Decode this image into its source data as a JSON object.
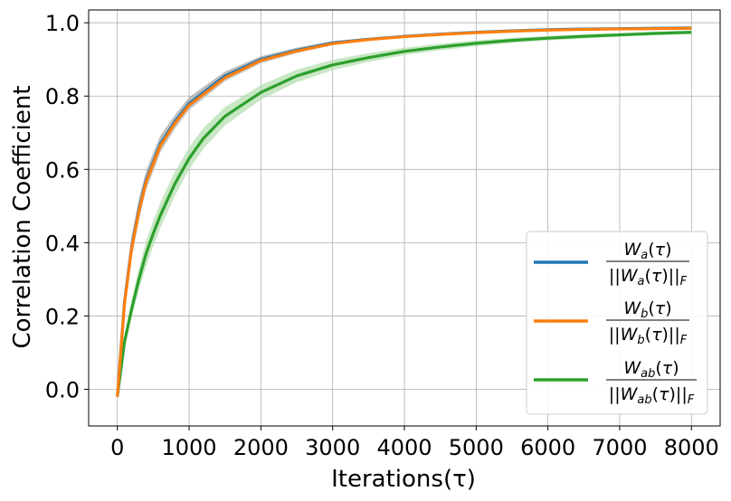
{
  "chart_data": {
    "type": "line",
    "title": "",
    "xlabel": "Iterations(τ)",
    "ylabel": "Correlation Coefficient",
    "xlim": [
      -400,
      8400
    ],
    "ylim": [
      -0.1,
      1.035
    ],
    "xticks": [
      0,
      1000,
      2000,
      3000,
      4000,
      5000,
      6000,
      7000,
      8000
    ],
    "yticks": [
      0.0,
      0.2,
      0.4,
      0.6,
      0.8,
      1.0
    ],
    "xtick_labels": [
      "0",
      "1000",
      "2000",
      "3000",
      "4000",
      "5000",
      "6000",
      "7000",
      "8000"
    ],
    "ytick_labels": [
      "0.0",
      "0.2",
      "0.4",
      "0.6",
      "0.8",
      "1.0"
    ],
    "grid": true,
    "legend_position": "bottom-right",
    "x": [
      0,
      100,
      200,
      300,
      400,
      500,
      600,
      800,
      1000,
      1200,
      1500,
      2000,
      2500,
      3000,
      3500,
      4000,
      4500,
      5000,
      5500,
      6000,
      6500,
      7000,
      7500,
      8000
    ],
    "series": [
      {
        "name": "Wa(τ) / ||Wa(τ)||F",
        "color": "#1f77b4",
        "band_color": "#a6a6a6",
        "values": [
          -0.02,
          0.24,
          0.39,
          0.49,
          0.57,
          0.62,
          0.67,
          0.73,
          0.78,
          0.81,
          0.855,
          0.9,
          0.925,
          0.945,
          0.955,
          0.963,
          0.969,
          0.974,
          0.978,
          0.981,
          0.983,
          0.984,
          0.985,
          0.986
        ],
        "band": [
          0.02,
          0.03,
          0.03,
          0.03,
          0.025,
          0.025,
          0.022,
          0.018,
          0.017,
          0.015,
          0.012,
          0.009,
          0.007,
          0.005,
          0.004,
          0.003,
          0.003,
          0.002,
          0.002,
          0.002,
          0.002,
          0.002,
          0.002,
          0.002
        ]
      },
      {
        "name": "Wb(τ) / ||Wb(τ)||F",
        "color": "#ff7f0e",
        "band_color": "#c7c7c7",
        "values": [
          -0.02,
          0.235,
          0.385,
          0.485,
          0.565,
          0.615,
          0.665,
          0.725,
          0.775,
          0.805,
          0.85,
          0.897,
          0.923,
          0.943,
          0.954,
          0.962,
          0.968,
          0.973,
          0.977,
          0.98,
          0.982,
          0.983,
          0.984,
          0.985
        ],
        "band": [
          0.015,
          0.025,
          0.025,
          0.025,
          0.02,
          0.02,
          0.018,
          0.015,
          0.013,
          0.012,
          0.01,
          0.008,
          0.006,
          0.004,
          0.003,
          0.003,
          0.002,
          0.002,
          0.002,
          0.002,
          0.002,
          0.002,
          0.002,
          0.002
        ]
      },
      {
        "name": "Wab(τ) / ||Wab(τ)||F",
        "color": "#2ca02c",
        "band_color": "#b5dfb0",
        "values": [
          -0.02,
          0.13,
          0.22,
          0.3,
          0.37,
          0.425,
          0.475,
          0.56,
          0.63,
          0.685,
          0.745,
          0.81,
          0.855,
          0.885,
          0.905,
          0.922,
          0.934,
          0.944,
          0.952,
          0.958,
          0.963,
          0.967,
          0.971,
          0.974
        ],
        "band": [
          0.01,
          0.02,
          0.025,
          0.03,
          0.035,
          0.035,
          0.035,
          0.033,
          0.03,
          0.028,
          0.025,
          0.02,
          0.017,
          0.014,
          0.012,
          0.01,
          0.009,
          0.008,
          0.007,
          0.006,
          0.006,
          0.005,
          0.005,
          0.005
        ]
      }
    ]
  }
}
